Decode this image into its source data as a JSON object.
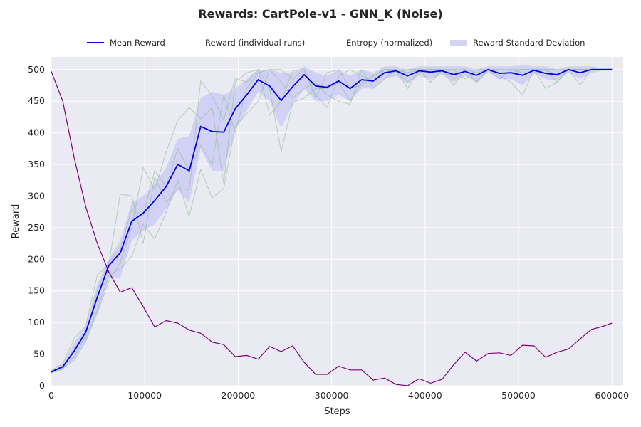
{
  "chart_data": {
    "type": "line",
    "title": "Rewards: CartPole-v1 - GNN_K (Noise)",
    "xlabel": "Steps",
    "ylabel": "Reward",
    "xlim": [
      0,
      612000
    ],
    "ylim": [
      0,
      520
    ],
    "xticks": [
      0,
      100000,
      200000,
      300000,
      400000,
      500000,
      600000
    ],
    "xtick_labels": [
      "0",
      "100000",
      "200000",
      "300000",
      "400000",
      "500000",
      "600000"
    ],
    "yticks": [
      0,
      50,
      100,
      150,
      200,
      250,
      300,
      350,
      400,
      450,
      500
    ],
    "ytick_labels": [
      "0",
      "50",
      "100",
      "150",
      "200",
      "250",
      "300",
      "350",
      "400",
      "450",
      "500"
    ],
    "grid": true,
    "legend_placement": "top-center",
    "colors": {
      "mean": "#0000ee",
      "runs": "#8fbc8f",
      "entropy": "#800080",
      "std": "#c8c8f5",
      "plot_bg": "#eaeaf2",
      "grid": "#ffffff"
    },
    "x": [
      0,
      12300,
      24600,
      36900,
      49200,
      61500,
      73800,
      86100,
      98400,
      110700,
      123000,
      135300,
      147600,
      159900,
      172200,
      184500,
      196800,
      209100,
      221400,
      233700,
      246000,
      258300,
      270600,
      282900,
      295200,
      307500,
      319800,
      332100,
      344400,
      356700,
      369000,
      381300,
      393600,
      405900,
      418200,
      430500,
      442800,
      455100,
      467400,
      479700,
      492000,
      504300,
      516600,
      528900,
      541200,
      553500,
      565800,
      578100,
      590400,
      600000
    ],
    "series": [
      {
        "name": "Mean Reward",
        "kind": "mean",
        "values": [
          22,
          30,
          55,
          85,
          140,
          190,
          210,
          260,
          273,
          293,
          315,
          350,
          340,
          410,
          402,
          401,
          438,
          460,
          484,
          474,
          451,
          473,
          492,
          474,
          472,
          482,
          470,
          484,
          482,
          495,
          498,
          490,
          498,
          496,
          498,
          492,
          497,
          491,
          500,
          494,
          495,
          491,
          499,
          494,
          492,
          500,
          495,
          500,
          500,
          500
        ]
      },
      {
        "name": "Reward (individual runs)",
        "kind": "runs",
        "runs": [
          [
            24,
            35,
            75,
            95,
            175,
            192,
            303,
            300,
            225,
            330,
            290,
            312,
            310,
            482,
            458,
            420,
            486,
            480,
            500,
            428,
            450,
            498,
            500,
            460,
            440,
            490,
            500,
            490,
            480,
            500,
            500,
            470,
            500,
            480,
            500,
            475,
            500,
            480,
            500,
            490,
            480,
            460,
            500,
            470,
            480,
            500,
            476,
            500,
            500,
            500
          ],
          [
            20,
            26,
            60,
            75,
            120,
            175,
            185,
            205,
            255,
            232,
            275,
            325,
            268,
            342,
            297,
            312,
            410,
            430,
            450,
            500,
            480,
            455,
            470,
            480,
            460,
            450,
            445,
            500,
            470,
            485,
            500,
            480,
            495,
            500,
            495,
            500,
            485,
            500,
            500,
            495,
            495,
            500,
            500,
            500,
            490,
            500,
            500,
            500,
            500,
            500
          ],
          [
            21,
            28,
            40,
            70,
            115,
            165,
            195,
            250,
            345,
            310,
            370,
            420,
            440,
            422,
            440,
            320,
            480,
            495,
            500,
            470,
            370,
            448,
            455,
            470,
            470,
            480,
            450,
            480,
            490,
            500,
            500,
            495,
            500,
            500,
            500,
            485,
            500,
            495,
            500,
            500,
            500,
            500,
            500,
            500,
            500,
            500,
            500,
            500,
            500,
            500
          ],
          [
            23,
            31,
            45,
            80,
            150,
            195,
            215,
            280,
            270,
            340,
            315,
            375,
            340,
            380,
            350,
            460,
            400,
            470,
            495,
            500,
            500,
            485,
            500,
            455,
            495,
            500,
            470,
            475,
            490,
            500,
            495,
            500,
            500,
            500,
            500,
            500,
            500,
            480,
            500,
            485,
            500,
            495,
            495,
            500,
            480,
            500,
            500,
            500,
            500,
            500
          ]
        ]
      },
      {
        "name": "Entropy (normalized)",
        "kind": "entropy",
        "values": [
          497,
          450,
          360,
          283,
          225,
          180,
          148,
          155,
          125,
          93,
          103,
          99,
          88,
          83,
          69,
          65,
          46,
          48,
          42,
          62,
          54,
          63,
          37,
          18,
          18,
          31,
          25,
          25,
          9,
          12,
          2,
          0,
          11,
          4,
          10,
          33,
          53,
          39,
          51,
          52,
          48,
          64,
          63,
          45,
          53,
          58,
          74,
          89,
          94,
          99
        ]
      },
      {
        "name": "Reward Standard Deviation",
        "kind": "std",
        "upper": [
          24,
          35,
          68,
          95,
          160,
          200,
          230,
          290,
          300,
          320,
          345,
          390,
          395,
          455,
          465,
          460,
          470,
          485,
          500,
          500,
          495,
          495,
          505,
          495,
          490,
          500,
          490,
          500,
          495,
          505,
          505,
          500,
          505,
          505,
          505,
          505,
          505,
          500,
          505,
          505,
          505,
          507,
          505,
          505,
          500,
          505,
          505,
          505,
          502,
          502
        ],
        "lower": [
          20,
          25,
          42,
          70,
          115,
          170,
          170,
          230,
          245,
          255,
          280,
          310,
          290,
          375,
          340,
          340,
          405,
          435,
          465,
          450,
          408,
          445,
          470,
          450,
          450,
          460,
          450,
          470,
          470,
          485,
          490,
          478,
          490,
          485,
          492,
          480,
          490,
          480,
          495,
          485,
          485,
          475,
          493,
          485,
          482,
          495,
          485,
          495,
          498,
          498
        ]
      }
    ]
  }
}
